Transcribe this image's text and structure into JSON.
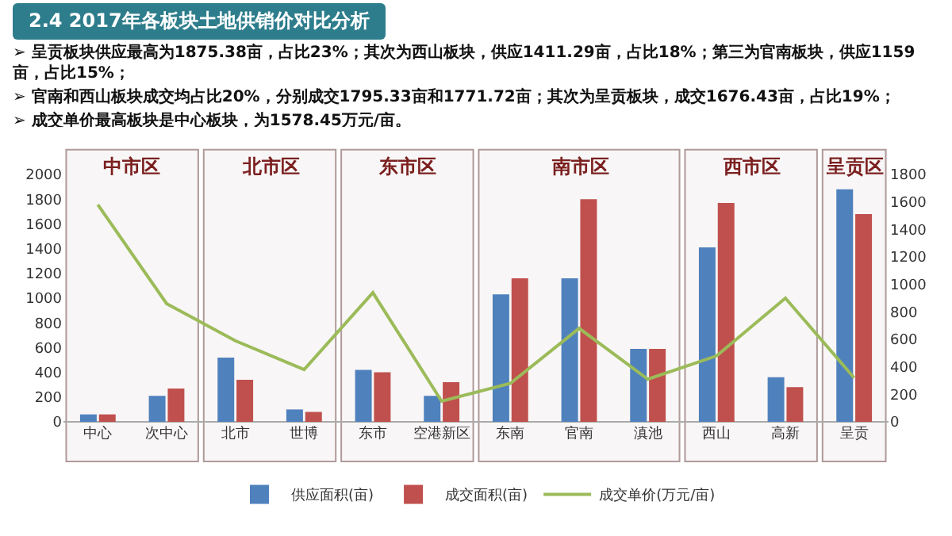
{
  "chart_data": {
    "type": "bar",
    "title": "2.4  2017年各板块土地供销价对比分析",
    "annotations": [
      "➢ 呈贡板块供应最高为1875.38亩，占比23%；其次为西山板块，供应1411.29亩，占比18%；第三为官南板块，供应1159亩，占比15%；",
      "➢ 官南和西山板块成交均占比20%，分别成交1795.33亩和1771.72亩；其次为呈贡板块，成交1676.43亩，占比19%；",
      "➢ 成交单价最高板块是中心板块，为1578.45万元/亩。"
    ],
    "categories": [
      "中心",
      "次中心",
      "北市",
      "世博",
      "东市",
      "空港新区",
      "东南",
      "官南",
      "滇池",
      "西山",
      "高新",
      "呈贡"
    ],
    "series": [
      {
        "name": "供应面积(亩)",
        "color": "#4f81bd",
        "values": [
          60,
          210,
          520,
          100,
          420,
          210,
          1030,
          1160,
          590,
          1410,
          360,
          1880
        ]
      },
      {
        "name": "成交面积(亩)",
        "color": "#c0504d",
        "values": [
          60,
          270,
          340,
          80,
          400,
          320,
          1160,
          1800,
          590,
          1770,
          280,
          1680
        ]
      },
      {
        "name": "成交单价(万元/亩)",
        "type": "line",
        "axis": "y2",
        "color": "#9bbb59",
        "values": [
          1580,
          860,
          590,
          380,
          940,
          150,
          280,
          680,
          310,
          480,
          900,
          320
        ]
      }
    ],
    "ylim": [
      0,
      2000
    ],
    "yticks": [
      0,
      200,
      400,
      600,
      800,
      1000,
      1200,
      1400,
      1600,
      1800,
      2000
    ],
    "y2lim": [
      0,
      1800
    ],
    "y2ticks": [
      0,
      200,
      400,
      600,
      800,
      1000,
      1200,
      1400,
      1600,
      1800
    ],
    "bands": [
      {
        "axis": "x",
        "from": "中心",
        "to": "次中心",
        "label": "中市区",
        "color": "#b09a9a"
      },
      {
        "axis": "x",
        "from": "北市",
        "to": "世博",
        "label": "北市区",
        "color": "#b09a9a"
      },
      {
        "axis": "x",
        "from": "东市",
        "to": "空港新区",
        "label": "东市区",
        "color": "#b09a9a"
      },
      {
        "axis": "x",
        "from": "东南",
        "to": "滇池",
        "label": "南市区",
        "color": "#b09a9a"
      },
      {
        "axis": "x",
        "from": "西山",
        "to": "高新",
        "label": "西市区",
        "color": "#b09a9a"
      },
      {
        "axis": "x",
        "from": "呈贡",
        "to": "呈贡",
        "label": "呈贡区",
        "color": "#b09a9a"
      }
    ],
    "grid": false,
    "legend": "bottom",
    "marker": "none",
    "line_style": "solid"
  }
}
